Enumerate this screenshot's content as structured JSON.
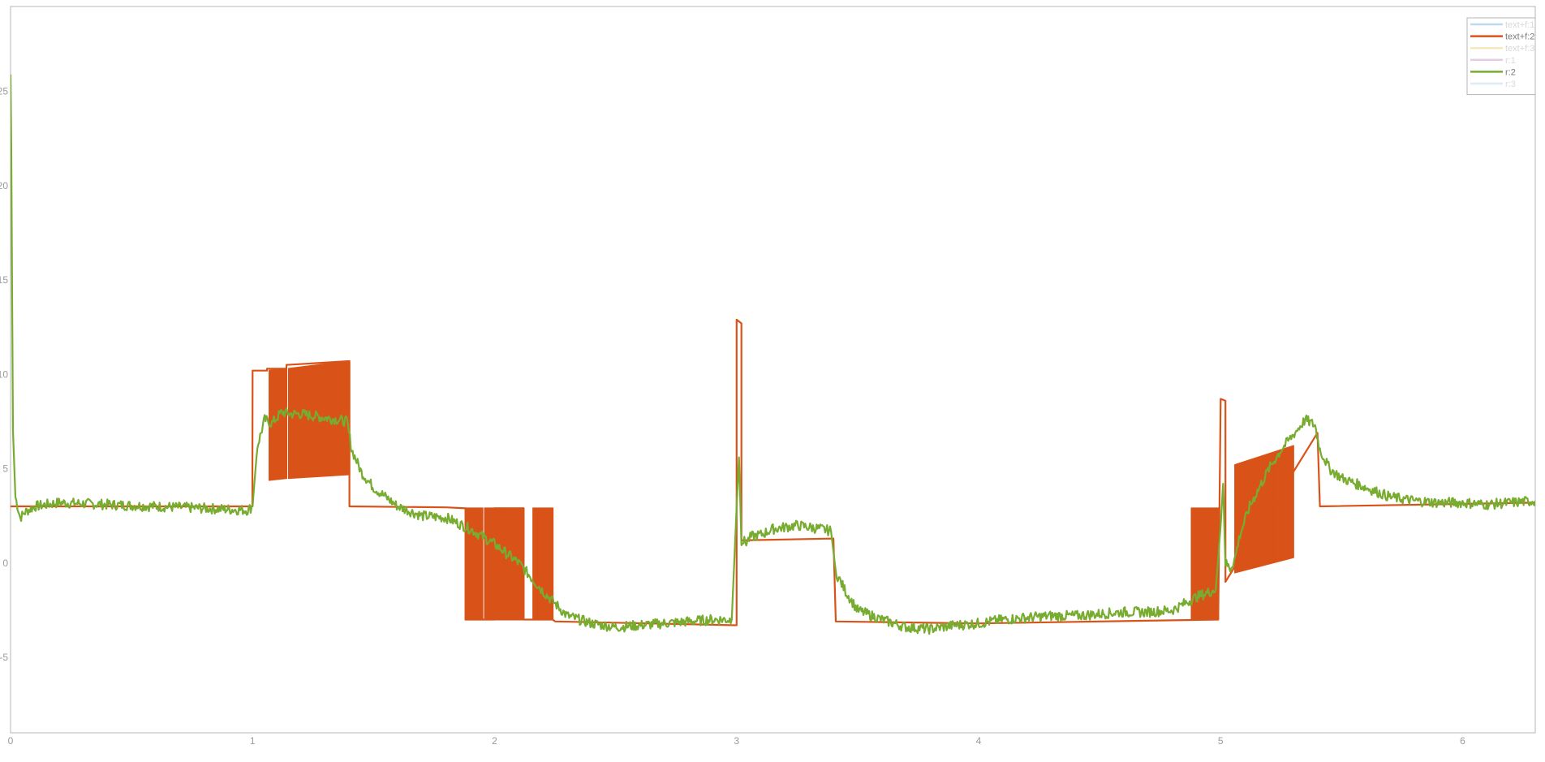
{
  "chart_data": {
    "type": "line",
    "title": "",
    "xlabel": "",
    "ylabel": "",
    "xlim": [
      0,
      6.3
    ],
    "ylim": [
      -9,
      29.5
    ],
    "grid": true,
    "legend_placement": "top-right",
    "x_ticks": [
      {
        "value": 0,
        "label": "0"
      },
      {
        "value": 1,
        "label": "1"
      },
      {
        "value": 2,
        "label": "2"
      },
      {
        "value": 3,
        "label": "3"
      },
      {
        "value": 4,
        "label": "4"
      },
      {
        "value": 5,
        "label": "5"
      },
      {
        "value": 6,
        "label": "6"
      }
    ],
    "y_ticks": [
      {
        "value": -5,
        "label": "-5"
      },
      {
        "value": 0,
        "label": "0"
      },
      {
        "value": 5,
        "label": "5"
      },
      {
        "value": 10,
        "label": "10"
      },
      {
        "value": 15,
        "label": "15"
      },
      {
        "value": 20,
        "label": "20"
      },
      {
        "value": 25,
        "label": "25"
      }
    ],
    "legend": [
      {
        "name": "text+f:1",
        "color": "#a6cbe6",
        "faded": true
      },
      {
        "name": "text+f:2",
        "color": "#d95319",
        "faded": false
      },
      {
        "name": "text+f:3",
        "color": "#f3dfa2",
        "faded": true
      },
      {
        "name": "r:1",
        "color": "#d9b7d9",
        "faded": true
      },
      {
        "name": "r:2",
        "color": "#77ac30",
        "faded": false
      },
      {
        "name": "r:3",
        "color": "#cde4f3",
        "faded": true
      }
    ],
    "series": [
      {
        "name": "text+f:2",
        "color": "#d95319",
        "x": [
          0,
          0.999,
          1.0,
          1.06,
          1.06,
          1.14,
          1.14,
          1.4,
          1.4,
          1.8,
          1.88,
          1.88,
          2.0,
          2.0,
          2.12,
          2.12,
          2.24,
          2.25,
          3.0,
          3.0,
          3.02,
          3.02,
          3.4,
          3.41,
          4.0,
          4.99,
          5.0,
          5.02,
          5.02,
          5.4,
          5.41,
          6.3
        ],
        "y": [
          3.0,
          3.0,
          10.2,
          10.2,
          10.3,
          10.3,
          10.5,
          10.7,
          3.0,
          2.95,
          2.9,
          -3.0,
          -3.0,
          2.9,
          2.9,
          -3.0,
          -3.0,
          -3.1,
          -3.3,
          12.9,
          12.7,
          1.2,
          1.3,
          -3.1,
          -3.2,
          -3.0,
          8.7,
          8.6,
          -1.0,
          6.9,
          3.0,
          3.2
        ]
      },
      {
        "name": "text+f:2 switching band",
        "color": "#d95319",
        "band": [
          {
            "x": [
              1.07,
              1.14
            ],
            "upper": [
              10.2,
              10.3
            ],
            "lower": [
              4.4,
              4.5
            ]
          },
          {
            "x": [
              1.15,
              1.4
            ],
            "upper": [
              10.3,
              10.7
            ],
            "lower": [
              4.5,
              4.7
            ]
          },
          {
            "x": [
              1.88,
              1.95
            ],
            "upper": [
              2.9,
              2.9
            ],
            "lower": [
              -3.0,
              -3.0
            ]
          },
          {
            "x": [
              1.96,
              2.12
            ],
            "upper": [
              2.9,
              2.9
            ],
            "lower": [
              -3.0,
              -3.0
            ]
          },
          {
            "x": [
              2.16,
              2.24
            ],
            "upper": [
              2.9,
              2.9
            ],
            "lower": [
              -3.0,
              -3.0
            ]
          },
          {
            "x": [
              4.88,
              4.99
            ],
            "upper": [
              2.9,
              2.9
            ],
            "lower": [
              -3.0,
              -3.0
            ]
          },
          {
            "x": [
              5.06,
              5.3
            ],
            "upper": [
              5.2,
              6.2
            ],
            "lower": [
              -0.5,
              0.3
            ]
          }
        ]
      },
      {
        "name": "r:2",
        "color": "#77ac30",
        "x": [
          0,
          0.003,
          0.01,
          0.02,
          0.04,
          0.06,
          0.1,
          0.2,
          0.4,
          0.6,
          0.8,
          0.98,
          1.0,
          1.02,
          1.05,
          1.08,
          1.12,
          1.16,
          1.2,
          1.25,
          1.3,
          1.35,
          1.39,
          1.41,
          1.45,
          1.5,
          1.6,
          1.7,
          1.8,
          1.9,
          2.0,
          2.1,
          2.2,
          2.3,
          2.4,
          2.5,
          2.6,
          2.7,
          2.8,
          2.9,
          2.98,
          3.0,
          3.01,
          3.02,
          3.04,
          3.06,
          3.1,
          3.15,
          3.2,
          3.25,
          3.3,
          3.35,
          3.39,
          3.41,
          3.45,
          3.5,
          3.6,
          3.7,
          3.8,
          3.9,
          4.0,
          4.1,
          4.2,
          4.3,
          4.4,
          4.5,
          4.6,
          4.7,
          4.8,
          4.9,
          4.98,
          5.0,
          5.01,
          5.02,
          5.04,
          5.06,
          5.08,
          5.12,
          5.16,
          5.2,
          5.25,
          5.3,
          5.35,
          5.39,
          5.41,
          5.45,
          5.5,
          5.6,
          5.7,
          5.8,
          5.9,
          6.0,
          6.1,
          6.2,
          6.3
        ],
        "y": [
          25.9,
          22.0,
          7.0,
          3.5,
          2.4,
          2.7,
          3.0,
          3.2,
          3.1,
          3.0,
          2.9,
          2.8,
          3.0,
          6.2,
          7.6,
          7.4,
          8.0,
          7.9,
          7.9,
          7.8,
          7.7,
          7.6,
          7.5,
          6.0,
          4.8,
          4.0,
          3.0,
          2.5,
          2.4,
          1.8,
          1.0,
          0.0,
          -1.5,
          -2.8,
          -3.2,
          -3.4,
          -3.3,
          -3.2,
          -3.1,
          -3.0,
          -3.0,
          3.0,
          5.6,
          1.2,
          1.1,
          1.4,
          1.5,
          1.8,
          1.9,
          2.0,
          1.9,
          1.8,
          1.7,
          -0.5,
          -1.5,
          -2.5,
          -3.0,
          -3.4,
          -3.5,
          -3.3,
          -3.2,
          -3.0,
          -2.9,
          -2.8,
          -2.8,
          -2.7,
          -2.6,
          -2.6,
          -2.5,
          -1.8,
          -1.4,
          2.0,
          4.2,
          0.0,
          -0.3,
          0.3,
          1.5,
          3.0,
          4.0,
          5.0,
          6.0,
          6.8,
          7.6,
          7.3,
          6.0,
          5.0,
          4.5,
          4.0,
          3.5,
          3.3,
          3.2,
          3.2,
          3.1,
          3.2,
          3.3
        ]
      }
    ]
  }
}
